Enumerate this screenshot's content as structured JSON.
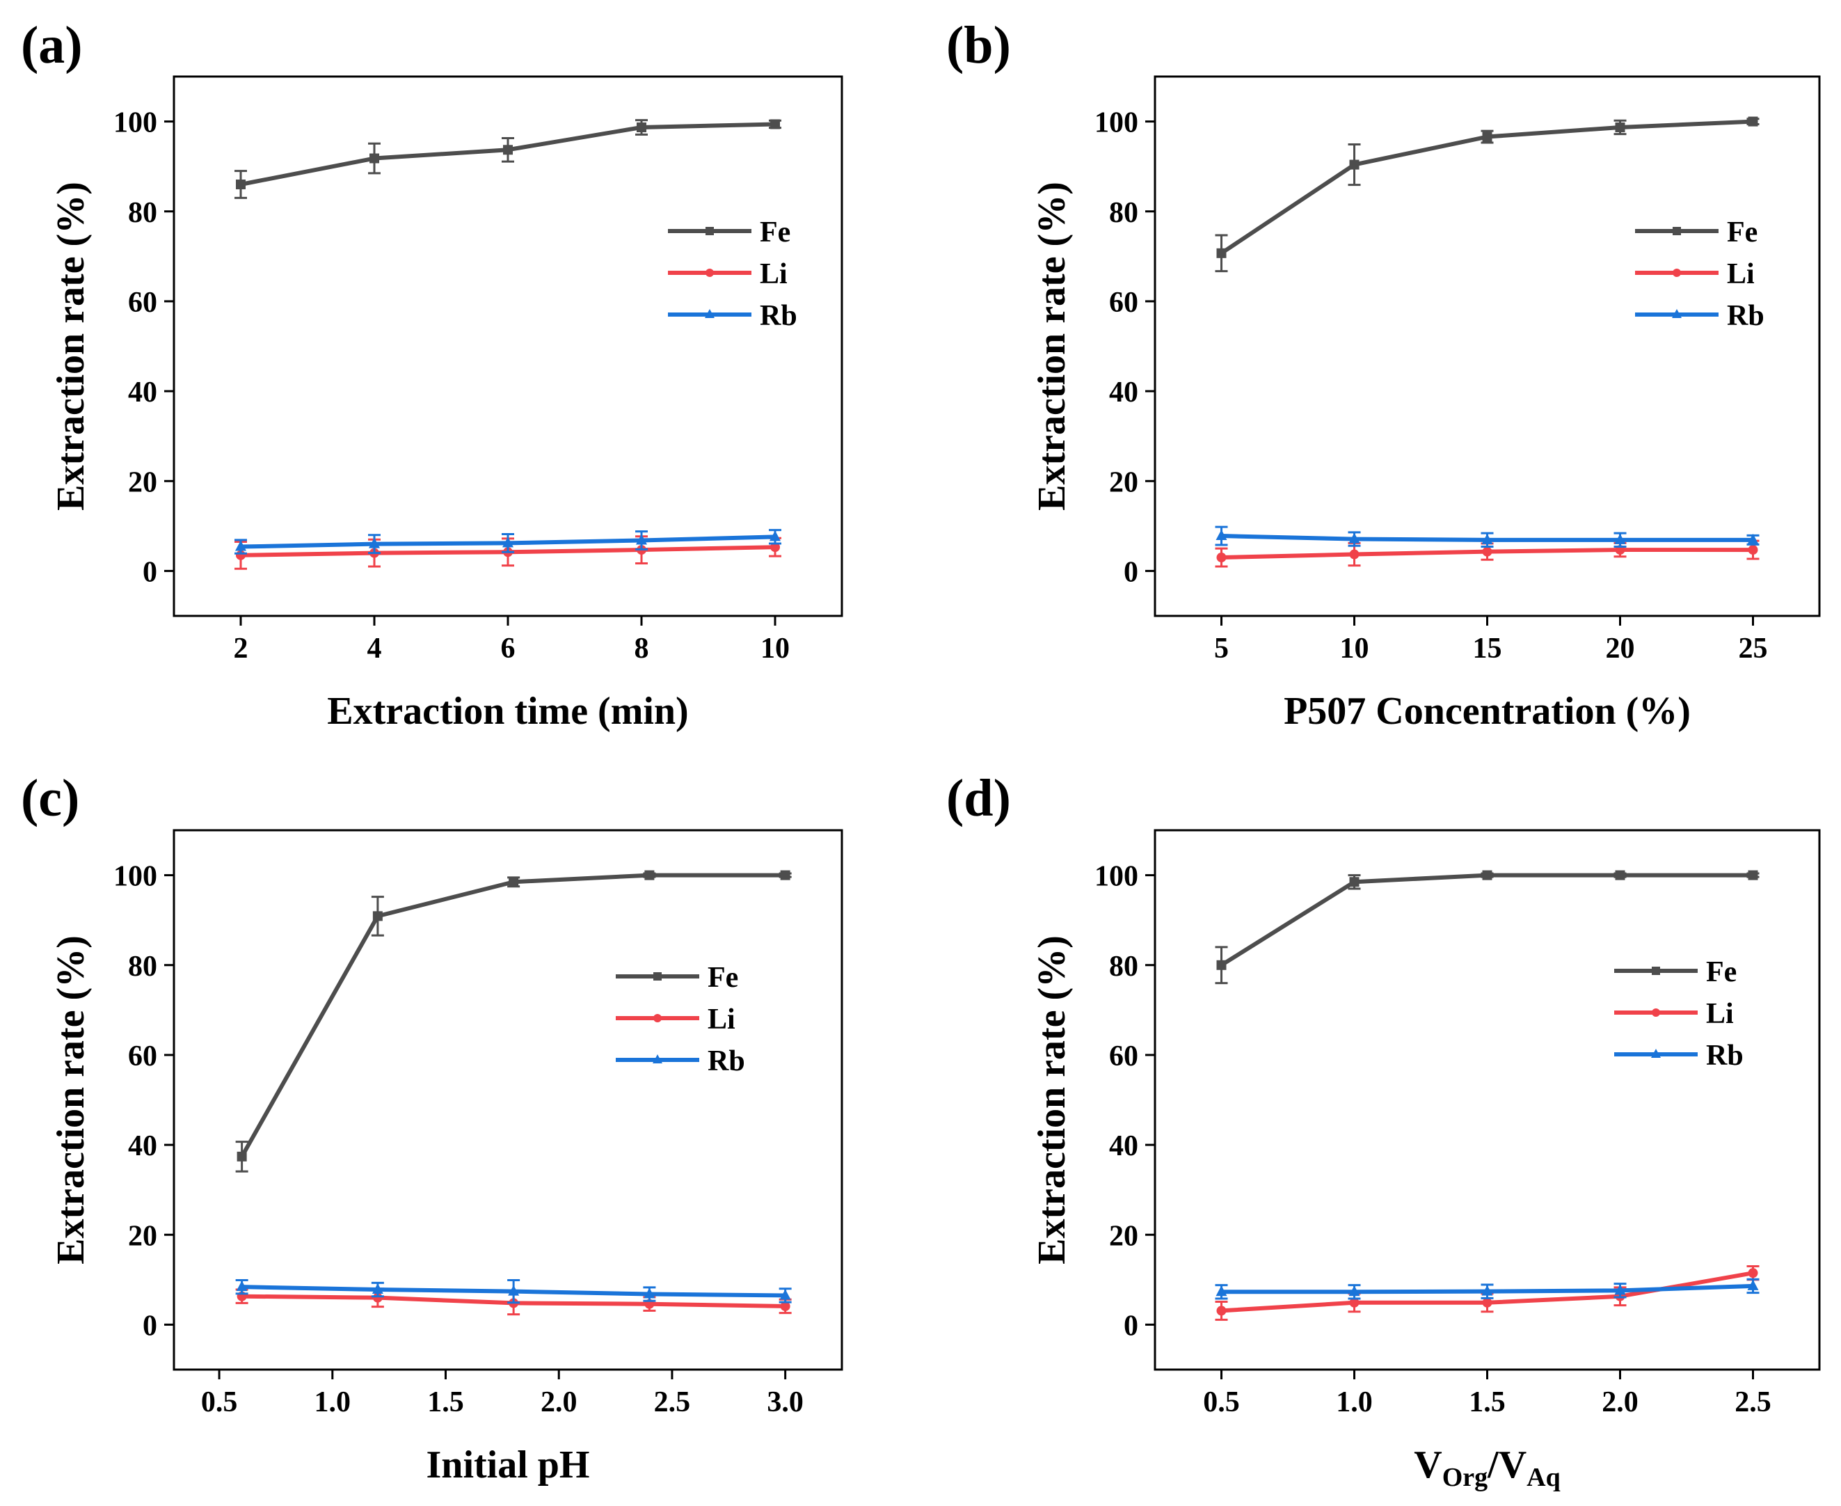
{
  "colors": {
    "Fe": "#4d4d4d",
    "Li": "#f0424a",
    "Rb": "#1a74d9",
    "axis": "#000000"
  },
  "chart_data": [
    {
      "panel": "(a)",
      "type": "line",
      "xlabel": "Extraction time (min)",
      "ylabel": "Extraction rate (%)",
      "x": [
        2,
        4,
        6,
        8,
        10
      ],
      "xticks": [
        2,
        4,
        6,
        8,
        10
      ],
      "xtick_labels": [
        "2",
        "4",
        "6",
        "8",
        "10"
      ],
      "xlim": [
        1,
        11
      ],
      "ylim": [
        -10,
        110
      ],
      "yticks": [
        0,
        20,
        40,
        60,
        80,
        100
      ],
      "ytick_labels": [
        "0",
        "20",
        "40",
        "60",
        "80",
        "100"
      ],
      "legend_position": "right-upper",
      "series": [
        {
          "name": "Fe",
          "marker": "square",
          "values": [
            86.0,
            91.8,
            93.7,
            98.7,
            99.4
          ],
          "errors": [
            3.0,
            3.3,
            2.6,
            1.6,
            0.8
          ]
        },
        {
          "name": "Li",
          "marker": "circle",
          "values": [
            3.5,
            4.0,
            4.2,
            4.7,
            5.3
          ],
          "errors": [
            3.0,
            3.0,
            3.0,
            3.0,
            2.0
          ]
        },
        {
          "name": "Rb",
          "marker": "triangle",
          "values": [
            5.4,
            6.0,
            6.2,
            6.8,
            7.6
          ],
          "errors": [
            1.5,
            2.0,
            2.0,
            2.0,
            1.5
          ]
        }
      ]
    },
    {
      "panel": "(b)",
      "type": "line",
      "xlabel": "P507 Concentration (%)",
      "ylabel": "Extraction rate (%)",
      "x": [
        5,
        10,
        15,
        20,
        25
      ],
      "xticks": [
        5,
        10,
        15,
        20,
        25
      ],
      "xtick_labels": [
        "5",
        "10",
        "15",
        "20",
        "25"
      ],
      "xlim": [
        2.5,
        27.5
      ],
      "ylim": [
        -10,
        110
      ],
      "yticks": [
        0,
        20,
        40,
        60,
        80,
        100
      ],
      "ytick_labels": [
        "0",
        "20",
        "40",
        "60",
        "80",
        "100"
      ],
      "legend_position": "right-upper",
      "series": [
        {
          "name": "Fe",
          "marker": "square",
          "values": [
            70.7,
            90.4,
            96.6,
            98.7,
            100.0
          ],
          "errors": [
            4.0,
            4.5,
            1.3,
            1.5,
            0.6
          ]
        },
        {
          "name": "Li",
          "marker": "circle",
          "values": [
            3.0,
            3.7,
            4.3,
            4.7,
            4.7
          ],
          "errors": [
            2.0,
            2.5,
            1.8,
            1.5,
            2.0
          ]
        },
        {
          "name": "Rb",
          "marker": "triangle",
          "values": [
            7.8,
            7.1,
            6.9,
            6.9,
            6.9
          ],
          "errors": [
            2.0,
            1.5,
            1.5,
            1.5,
            1.0
          ]
        }
      ]
    },
    {
      "panel": "(c)",
      "type": "line",
      "xlabel": "Initial pH",
      "ylabel": "Extraction rate (%)",
      "x": [
        0.6,
        1.2,
        1.8,
        2.4,
        3.0
      ],
      "xticks": [
        0.5,
        1.0,
        1.5,
        2.0,
        2.5,
        3.0
      ],
      "xtick_labels": [
        "0.5",
        "1.0",
        "1.5",
        "2.0",
        "2.5",
        "3.0"
      ],
      "xlim": [
        0.3,
        3.25
      ],
      "ylim": [
        -10,
        110
      ],
      "yticks": [
        0,
        20,
        40,
        60,
        80,
        100
      ],
      "ytick_labels": [
        "0",
        "20",
        "40",
        "60",
        "80",
        "100"
      ],
      "legend_position": "right-upper",
      "series": [
        {
          "name": "Fe",
          "marker": "square",
          "values": [
            37.4,
            90.9,
            98.5,
            100.0,
            100.0
          ],
          "errors": [
            3.3,
            4.3,
            1.0,
            0.4,
            0.4
          ]
        },
        {
          "name": "Li",
          "marker": "circle",
          "values": [
            6.3,
            6.0,
            4.8,
            4.6,
            4.1
          ],
          "errors": [
            1.5,
            2.0,
            2.5,
            1.5,
            1.5
          ]
        },
        {
          "name": "Rb",
          "marker": "triangle",
          "values": [
            8.4,
            7.8,
            7.4,
            6.8,
            6.5
          ],
          "errors": [
            1.5,
            1.5,
            2.5,
            1.5,
            1.5
          ]
        }
      ]
    },
    {
      "panel": "(d)",
      "type": "line",
      "xlabel_main": "V",
      "xlabel_sub1": "Org",
      "xlabel_slash": "/V",
      "xlabel_sub2": "Aq",
      "ylabel": "Extraction rate (%)",
      "x": [
        0.5,
        1.0,
        1.5,
        2.0,
        2.5
      ],
      "xticks": [
        0.5,
        1.0,
        1.5,
        2.0,
        2.5
      ],
      "xtick_labels": [
        "0.5",
        "1.0",
        "1.5",
        "2.0",
        "2.5"
      ],
      "xlim": [
        0.25,
        2.75
      ],
      "ylim": [
        -10,
        110
      ],
      "yticks": [
        0,
        20,
        40,
        60,
        80,
        100
      ],
      "ytick_labels": [
        "0",
        "20",
        "40",
        "60",
        "80",
        "100"
      ],
      "legend_position": "right-upper",
      "series": [
        {
          "name": "Fe",
          "marker": "square",
          "values": [
            80.0,
            98.5,
            100.0,
            100.0,
            100.0
          ],
          "errors": [
            4.0,
            1.5,
            0.4,
            0.4,
            0.4
          ]
        },
        {
          "name": "Li",
          "marker": "circle",
          "values": [
            3.1,
            4.9,
            4.9,
            6.3,
            11.5
          ],
          "errors": [
            2.0,
            2.0,
            2.0,
            2.0,
            1.5
          ]
        },
        {
          "name": "Rb",
          "marker": "triangle",
          "values": [
            7.3,
            7.3,
            7.4,
            7.6,
            8.6
          ],
          "errors": [
            1.5,
            1.5,
            1.5,
            1.5,
            1.5
          ]
        }
      ]
    }
  ]
}
